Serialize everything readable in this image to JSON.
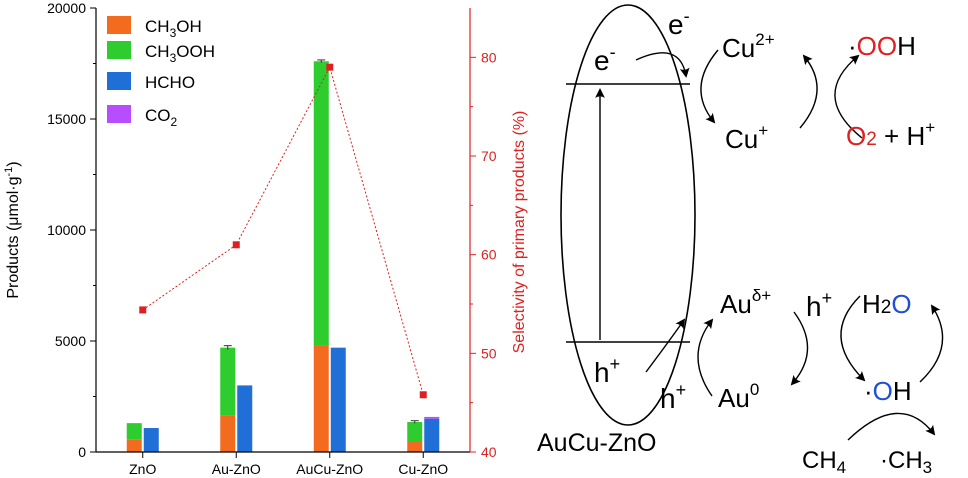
{
  "chart_data": {
    "type": "bar",
    "categories": [
      "ZnO",
      "Au-ZnO",
      "AuCu-ZnO",
      "Cu-ZnO"
    ],
    "stacked_bar": {
      "series": [
        {
          "name": "CH3OH",
          "values": [
            550,
            1650,
            4800,
            450
          ],
          "color": "#f26b1f"
        },
        {
          "name": "CH3OOH",
          "values": [
            750,
            3050,
            12800,
            900
          ],
          "color": "#2ecc2e"
        }
      ],
      "error": [
        0,
        90,
        60,
        60
      ]
    },
    "hcho_bar": {
      "series": [
        {
          "name": "HCHO",
          "values": [
            1080,
            3000,
            4700,
            1500
          ],
          "color": "#1f6fd6"
        },
        {
          "name": "CO2",
          "values": [
            0,
            0,
            0,
            80
          ],
          "color": "#b84cff"
        }
      ]
    },
    "selectivity": {
      "values": [
        54.4,
        61.0,
        79.0,
        45.8
      ],
      "color": "#e02020"
    },
    "ylabel": "Products (μmol·g-1)",
    "ylim": [
      0,
      20000
    ],
    "yticks": [
      "0",
      "5000",
      "10000",
      "15000",
      "20000"
    ],
    "y2label": "Selectivity of primary products (%)",
    "y2lim": [
      40,
      85
    ],
    "y2ticks": [
      "40",
      "50",
      "60",
      "70",
      "80"
    ],
    "legend": [
      "CH3OH",
      "CH3OOH",
      "HCHO",
      "CO2"
    ],
    "legend_position": "top-left"
  },
  "mechanism": {
    "catalyst_label": "AuCu-ZnO",
    "electron": "e-",
    "hole": "h+",
    "cu2": "Cu2+",
    "cu1": "Cu+",
    "ooh": "·OOH",
    "o2": "O2 + H+",
    "au_d": "Auδ+",
    "au0": "Au0",
    "h2o": "H2O",
    "oh": "·OH",
    "ch4": "CH4",
    "ch3": "·CH3"
  }
}
